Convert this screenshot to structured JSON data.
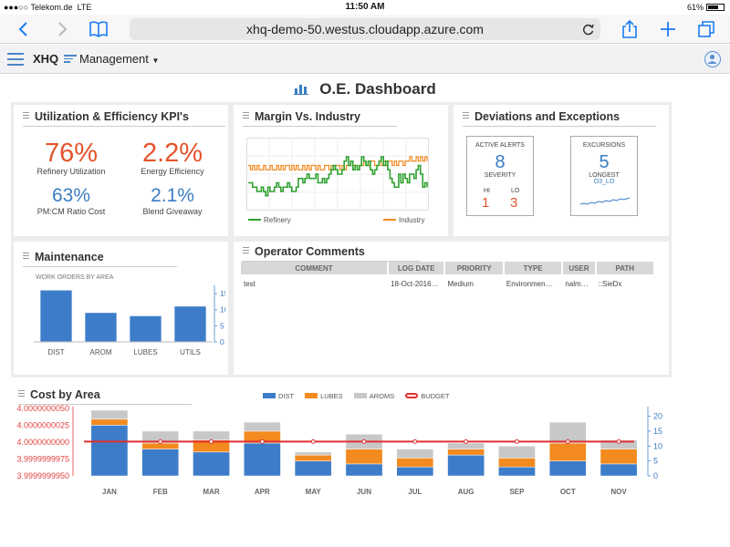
{
  "status_bar": {
    "carrier": "●●●○○ Telekom.de",
    "network": "LTE",
    "time": "11:50 AM",
    "battery": "61%"
  },
  "browser": {
    "url": "xhq-demo-50.westus.cloudapp.azure.com",
    "icons": [
      "back-icon",
      "forward-icon",
      "bookmarks-icon",
      "reload-icon",
      "share-icon",
      "new-tab-icon",
      "tabs-icon"
    ]
  },
  "app": {
    "brand": "XHQ",
    "menu_label": "Management"
  },
  "dashboard": {
    "title": "O.E. Dashboard"
  },
  "kpi_panel": {
    "title": "Utilization & Efficiency KPI's",
    "items": [
      {
        "value": "76%",
        "label": "Refinery Utilization",
        "color": "#e4542a"
      },
      {
        "value": "2.2%",
        "label": "Energy Efficiency",
        "color": "#e4542a"
      },
      {
        "value": "63%",
        "label": "PM:CM Ratio Cost",
        "color": "#3a7dc2"
      },
      {
        "value": "2.1%",
        "label": "Blend Giveaway",
        "color": "#3a7dc2"
      }
    ]
  },
  "margin_panel": {
    "title": "Margin Vs. Industry",
    "chart_data": {
      "type": "line",
      "title": "Margin Vs. Industry",
      "series": [
        {
          "name": "Refinery",
          "color": "#2ea02e",
          "values": [
            6,
            6,
            5,
            5,
            4,
            4,
            5,
            4,
            3,
            5,
            4,
            4,
            5,
            6,
            5,
            4,
            5,
            5,
            6,
            5,
            4,
            4,
            5,
            7,
            7,
            6,
            7,
            8,
            7,
            7,
            7,
            8,
            6,
            6,
            7,
            6,
            7,
            8,
            9,
            10,
            9,
            8,
            8,
            9,
            11,
            12,
            10,
            11,
            9,
            10,
            9,
            10,
            12,
            11,
            10,
            11,
            9,
            8,
            9,
            10,
            11,
            12,
            10,
            11,
            9,
            7,
            6,
            5,
            5,
            8,
            6,
            8,
            7,
            6,
            8,
            8,
            7,
            9,
            10,
            8,
            5,
            6,
            5
          ]
        },
        {
          "name": "Industry",
          "color": "#f28a1f",
          "values": [
            10,
            9,
            10,
            9,
            10,
            9,
            9,
            10,
            9,
            9,
            10,
            9,
            9,
            10,
            9,
            10,
            9,
            10,
            10,
            9,
            10,
            9,
            10,
            9,
            9,
            10,
            9,
            10,
            9,
            10,
            10,
            9,
            10,
            9,
            9,
            10,
            10,
            9,
            10,
            9,
            10,
            10,
            9,
            10,
            9,
            10,
            10,
            11,
            10,
            10,
            9,
            10,
            10,
            11,
            10,
            10,
            11,
            11,
            10,
            10,
            11,
            10,
            11,
            10,
            11,
            11,
            10,
            11,
            10,
            11,
            11,
            10,
            11,
            11,
            12,
            11,
            11,
            12,
            11,
            12,
            11,
            12,
            11
          ]
        }
      ]
    },
    "legend": [
      "Refinery",
      "Industry"
    ]
  },
  "deviations_panel": {
    "title": "Deviations and Exceptions",
    "alerts": {
      "header": "ACTIVE ALERTS",
      "count": "8",
      "sub": "SEVERITY",
      "hi_label": "HI",
      "lo_label": "LO",
      "hi": "1",
      "lo": "3"
    },
    "excursions": {
      "header": "EXCURSIONS",
      "count": "5",
      "sub": "LONGEST",
      "detail": "O3_LO"
    }
  },
  "maintenance_panel": {
    "title": "Maintenance",
    "subtitle": "WORK ORDERS BY AREA",
    "chart_data": {
      "type": "bar",
      "title": "Maintenance",
      "subtitle": "WORK ORDERS BY AREA",
      "categories": [
        "DIST",
        "AROM",
        "LUBES",
        "UTILS"
      ],
      "values": [
        16,
        9,
        8,
        11
      ],
      "ylim": [
        0,
        17
      ],
      "yticks": [
        0,
        5,
        10,
        15
      ]
    }
  },
  "comments_panel": {
    "title": "Operator Comments",
    "columns": [
      "COMMENT",
      "LOG DATE",
      "PRIORITY",
      "TYPE",
      "USER",
      "PATH"
    ],
    "rows": [
      {
        "comment": "test",
        "log_date": "18-Oct-2016…",
        "priority": "Medium",
        "type": "Environmen…",
        "user": "nalm…",
        "path": "::SieDx"
      }
    ]
  },
  "cost_panel": {
    "title": "Cost by Area",
    "chart_data": {
      "type": "bar",
      "title": "Cost by Area",
      "categories": [
        "JAN",
        "FEB",
        "MAR",
        "APR",
        "MAY",
        "JUN",
        "JUL",
        "AUG",
        "SEP",
        "OCT",
        "NOV"
      ],
      "series": [
        {
          "name": "DIST",
          "color": "#3d7cc9",
          "values": [
            17,
            9,
            8,
            11,
            5,
            4,
            3,
            7,
            3,
            5,
            4
          ]
        },
        {
          "name": "LUBES",
          "color": "#f28a1f",
          "values": [
            2,
            2,
            4,
            4,
            2,
            5,
            3,
            2,
            3,
            6,
            5
          ]
        },
        {
          "name": "AROMS",
          "color": "#c8c8c8",
          "values": [
            3,
            4,
            3,
            3,
            1,
            5,
            3,
            2,
            4,
            7,
            3
          ]
        }
      ],
      "budget": {
        "name": "BUDGET",
        "color": "#e03030",
        "value": 11.5
      },
      "right_axis": {
        "ylim": [
          0,
          22
        ],
        "ticks": [
          0,
          5,
          10,
          15,
          20
        ]
      },
      "left_axis_ticks": [
        "4.0000000050",
        "4.0000000025",
        "4.0000000000",
        "3.9999999975",
        "3.9999999950"
      ]
    }
  }
}
